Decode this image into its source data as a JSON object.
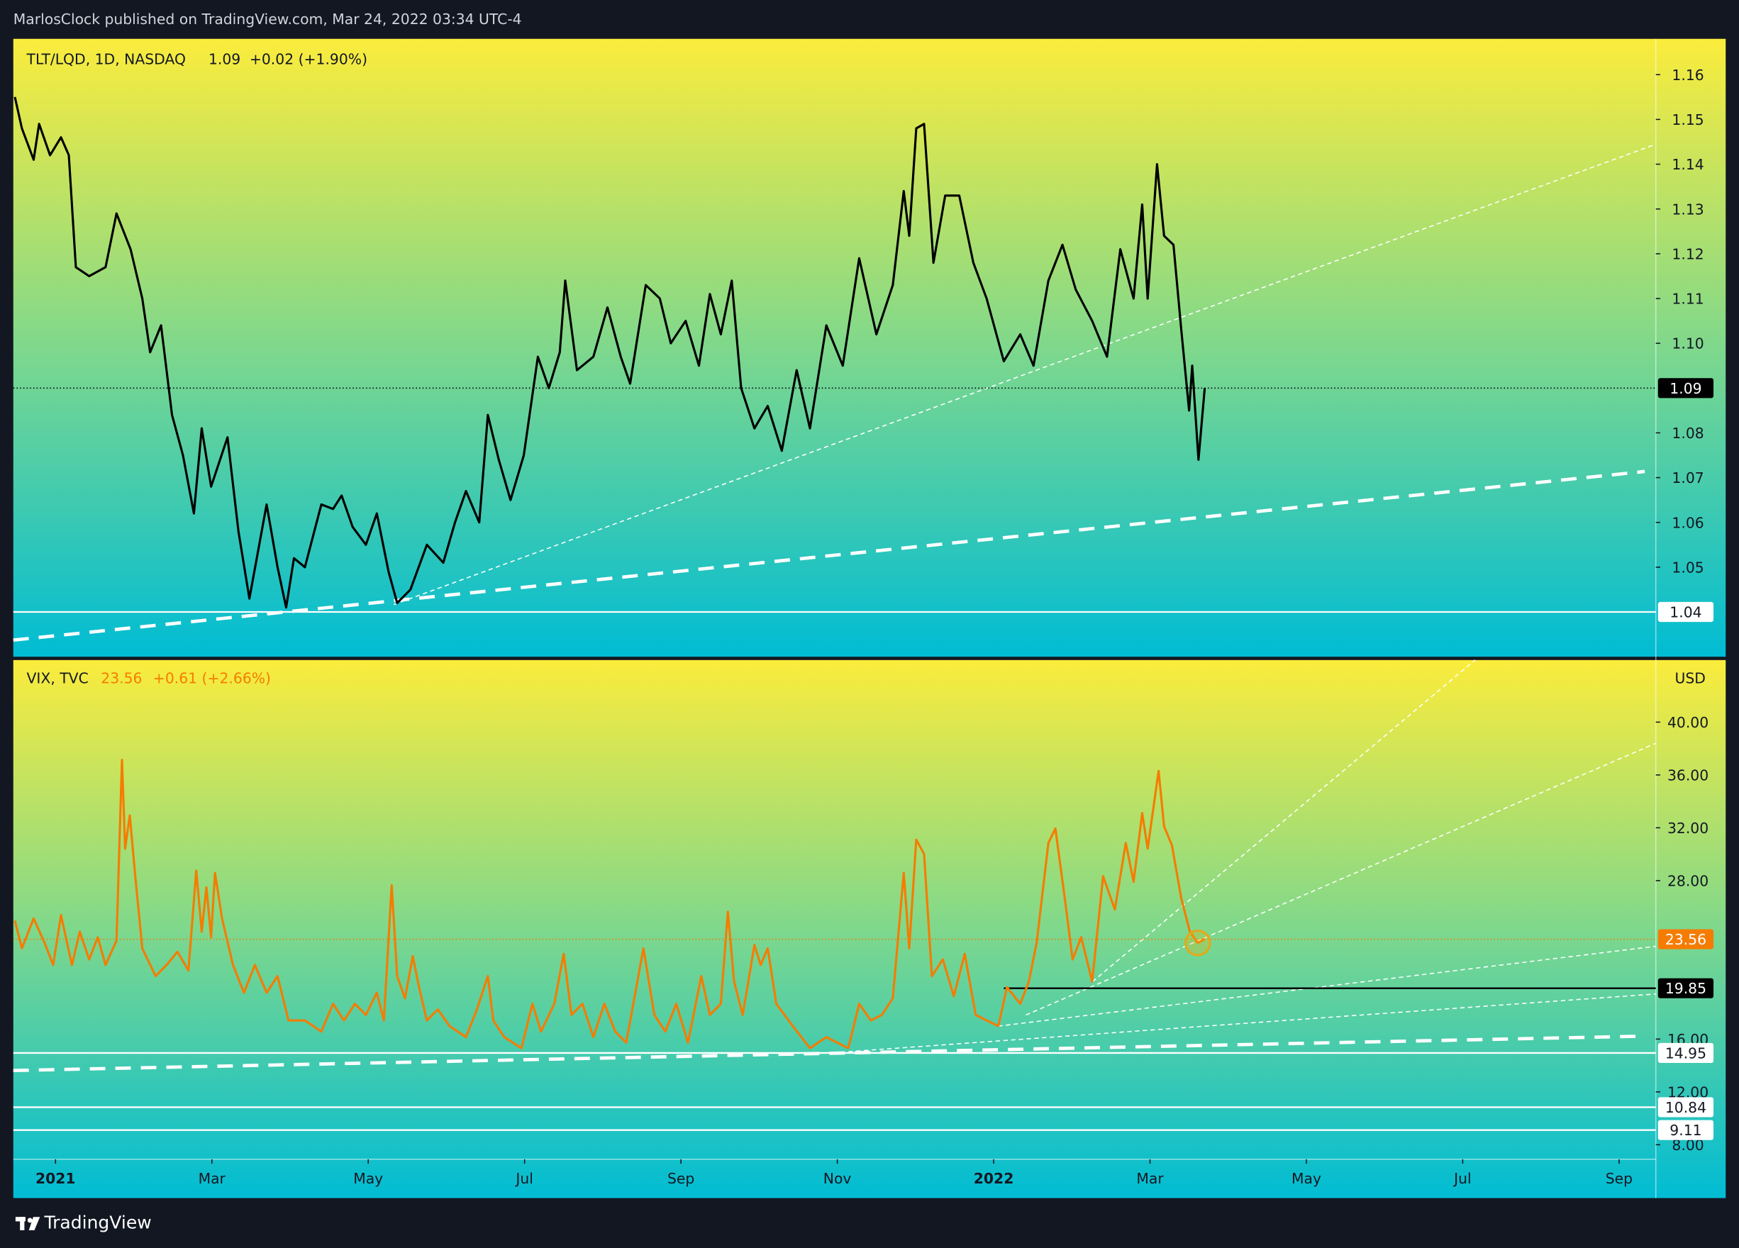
{
  "header": "MarlosClock published on TradingView.com, Mar 24, 2022 03:34 UTC-4",
  "footer": "TradingView",
  "chart_data": [
    {
      "type": "line",
      "title": "TLT/LQD, 1D, NASDAQ",
      "last": 1.09,
      "change": "+0.02 (+1.90%)",
      "color": "#000000",
      "x": [
        -0.52,
        -0.43,
        -0.28,
        -0.21,
        -0.07,
        0.07,
        0.17,
        0.26,
        0.43,
        0.64,
        0.78,
        0.96,
        1.11,
        1.21,
        1.35,
        1.49,
        1.63,
        1.77,
        1.87,
        1.99,
        2.2,
        2.34,
        2.48,
        2.7,
        2.84,
        2.95,
        3.05,
        3.19,
        3.4,
        3.55,
        3.66,
        3.8,
        3.97,
        4.11,
        4.26,
        4.37,
        4.54,
        4.75,
        4.96,
        5.11,
        5.25,
        5.42,
        5.53,
        5.67,
        5.82,
        5.99,
        6.17,
        6.31,
        6.45,
        6.52,
        6.67,
        6.88,
        7.06,
        7.23,
        7.35,
        7.55,
        7.73,
        7.87,
        8.06,
        8.23,
        8.37,
        8.51,
        8.65,
        8.77,
        8.94,
        9.11,
        9.29,
        9.48,
        9.65,
        9.86,
        10.07,
        10.28,
        10.5,
        10.71,
        10.85,
        10.92,
        11.01,
        11.11,
        11.23,
        11.38,
        11.56,
        11.74,
        11.91,
        12.13,
        12.34,
        12.51,
        12.7,
        12.88,
        13.05,
        13.26,
        13.45,
        13.62,
        13.79,
        13.9,
        13.97,
        14.09,
        14.18,
        14.3,
        14.4,
        14.5,
        14.54,
        14.62,
        14.7
      ],
      "values": [
        1.155,
        1.148,
        1.141,
        1.149,
        1.142,
        1.146,
        1.142,
        1.117,
        1.115,
        1.117,
        1.129,
        1.121,
        1.11,
        1.098,
        1.104,
        1.084,
        1.075,
        1.062,
        1.081,
        1.068,
        1.079,
        1.058,
        1.043,
        1.064,
        1.05,
        1.041,
        1.052,
        1.05,
        1.064,
        1.063,
        1.066,
        1.059,
        1.055,
        1.062,
        1.049,
        1.042,
        1.045,
        1.055,
        1.051,
        1.06,
        1.067,
        1.06,
        1.084,
        1.074,
        1.065,
        1.075,
        1.097,
        1.09,
        1.098,
        1.114,
        1.094,
        1.097,
        1.108,
        1.097,
        1.091,
        1.113,
        1.11,
        1.1,
        1.105,
        1.095,
        1.111,
        1.102,
        1.114,
        1.09,
        1.081,
        1.086,
        1.076,
        1.094,
        1.081,
        1.104,
        1.095,
        1.119,
        1.102,
        1.113,
        1.134,
        1.124,
        1.148,
        1.149,
        1.118,
        1.133,
        1.133,
        1.118,
        1.11,
        1.096,
        1.102,
        1.095,
        1.114,
        1.122,
        1.112,
        1.105,
        1.097,
        1.121,
        1.11,
        1.131,
        1.11,
        1.14,
        1.124,
        1.122,
        1.103,
        1.085,
        1.095,
        1.074,
        1.09
      ],
      "xlim": [
        -0.54,
        20.47
      ],
      "ylim": [
        1.03,
        1.168
      ],
      "yticks": [
        1.05,
        1.06,
        1.07,
        1.08,
        {
          "value": 1.1,
          "label": "1.10"
        },
        1.11,
        1.12,
        1.13,
        1.14,
        1.15,
        1.16
      ],
      "price_lines": [
        {
          "value": 1.04,
          "color": "#ffffff"
        }
      ]
    },
    {
      "type": "line",
      "title": "VIX, TVC",
      "last": 23.56,
      "change": "+0.61 (+2.66%)",
      "color": "#f57c00",
      "currency": "USD",
      "x": [
        -0.52,
        -0.43,
        -0.28,
        -0.14,
        -0.03,
        0.07,
        0.21,
        0.31,
        0.43,
        0.54,
        0.64,
        0.78,
        0.85,
        0.89,
        0.95,
        1.02,
        1.11,
        1.28,
        1.42,
        1.56,
        1.7,
        1.8,
        1.87,
        1.93,
        1.99,
        2.04,
        2.13,
        2.27,
        2.41,
        2.55,
        2.7,
        2.84,
        2.98,
        3.19,
        3.4,
        3.55,
        3.69,
        3.83,
        3.97,
        4.11,
        4.2,
        4.3,
        4.37,
        4.47,
        4.57,
        4.65,
        4.75,
        4.89,
        5.04,
        5.25,
        5.39,
        5.53,
        5.6,
        5.74,
        5.96,
        6.1,
        6.21,
        6.38,
        6.5,
        6.6,
        6.74,
        6.88,
        7.02,
        7.16,
        7.3,
        7.52,
        7.66,
        7.8,
        7.94,
        8.09,
        8.26,
        8.37,
        8.51,
        8.6,
        8.68,
        8.79,
        8.94,
        9.02,
        9.11,
        9.22,
        9.43,
        9.65,
        9.86,
        10.14,
        10.28,
        10.43,
        10.57,
        10.71,
        10.85,
        10.92,
        11.01,
        11.11,
        11.21,
        11.35,
        11.49,
        11.63,
        11.77,
        11.91,
        12.06,
        12.17,
        12.34,
        12.45,
        12.55,
        12.7,
        12.79,
        12.91,
        13.01,
        13.12,
        13.26,
        13.4,
        13.55,
        13.69,
        13.79,
        13.9,
        13.97,
        14.11,
        14.18,
        14.28,
        14.4,
        14.51,
        14.61,
        14.7
      ],
      "values": [
        24.97,
        22.87,
        25.13,
        23.29,
        21.61,
        25.39,
        21.61,
        24.13,
        22.03,
        23.71,
        21.61,
        23.45,
        37.14,
        30.42,
        32.94,
        28.33,
        22.87,
        20.77,
        21.61,
        22.61,
        21.19,
        28.75,
        24.13,
        27.49,
        23.71,
        28.58,
        25.13,
        21.61,
        19.51,
        21.61,
        19.51,
        20.77,
        17.41,
        17.41,
        16.57,
        18.67,
        17.41,
        18.67,
        17.83,
        19.51,
        17.41,
        27.65,
        20.77,
        19.09,
        22.28,
        19.93,
        17.41,
        18.25,
        16.99,
        16.15,
        18.25,
        20.77,
        17.41,
        16.15,
        15.31,
        18.67,
        16.57,
        18.67,
        22.45,
        17.83,
        18.67,
        16.15,
        18.67,
        16.57,
        15.73,
        22.87,
        17.83,
        16.57,
        18.67,
        15.73,
        20.77,
        17.83,
        18.67,
        25.64,
        20.35,
        17.83,
        23.12,
        21.61,
        22.87,
        18.67,
        16.99,
        15.31,
        16.15,
        15.31,
        18.67,
        17.41,
        17.83,
        19.09,
        28.58,
        22.87,
        31.1,
        30.01,
        20.77,
        22.03,
        19.25,
        22.45,
        17.83,
        17.41,
        16.99,
        19.93,
        18.67,
        20.35,
        23.29,
        30.85,
        31.94,
        26.65,
        22.03,
        23.71,
        20.35,
        28.33,
        25.81,
        30.85,
        27.91,
        33.11,
        30.42,
        36.3,
        32.1,
        30.68,
        26.65,
        24.13,
        23.29,
        23.56
      ],
      "xlim": [
        -0.54,
        20.47
      ],
      "ylim": [
        6.9,
        44.7
      ],
      "xticks": [
        {
          "value": 0,
          "label": "2021"
        },
        {
          "value": 2,
          "label": "Mar"
        },
        {
          "value": 4,
          "label": "May"
        },
        {
          "value": 6,
          "label": "Jul"
        },
        {
          "value": 8,
          "label": "Sep"
        },
        {
          "value": 10,
          "label": "Nov"
        },
        {
          "value": 12,
          "label": "2022"
        },
        {
          "value": 14,
          "label": "Mar"
        },
        {
          "value": 16,
          "label": "May"
        },
        {
          "value": 18,
          "label": "Jul"
        },
        {
          "value": 20,
          "label": "Sep"
        }
      ],
      "yticks": [
        {
          "value": 8,
          "label": "8.00"
        },
        {
          "value": 12,
          "label": "12.00"
        },
        {
          "value": 16,
          "label": "16.00"
        },
        {
          "value": 28,
          "label": "28.00"
        },
        {
          "value": 32,
          "label": "32.00"
        },
        {
          "value": 36,
          "label": "36.00"
        },
        {
          "value": 40,
          "label": "40.00"
        }
      ],
      "price_lines": [
        {
          "value": 19.85,
          "color": "#000000",
          "from": 12.13
        },
        {
          "value": 14.95,
          "color": "#ffffff"
        },
        {
          "value": 10.84,
          "color": "#ffffff"
        },
        {
          "value": 9.11,
          "color": "#ffffff"
        }
      ]
    }
  ]
}
